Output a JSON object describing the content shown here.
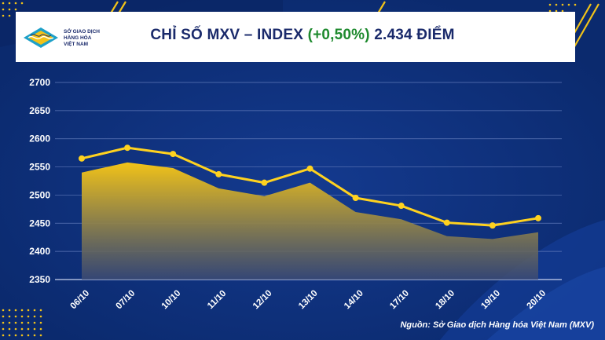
{
  "header": {
    "logo_lines": [
      "SỞ GIAO DỊCH",
      "HÀNG HÓA",
      "VIỆT NAM"
    ],
    "title_prefix": "CHỈ SỐ MXV – INDEX",
    "title_change": "(+0,50%)",
    "title_suffix": "2.434 ĐIỂM"
  },
  "source": "Nguồn: Sở Giao dịch Hàng hóa Việt Nam (MXV)",
  "colors": {
    "background": "#0d2e78",
    "line": "#ffd21f",
    "area_top": "#f2c318",
    "area_bottom": "#3b4a74",
    "title": "#1a2a6b",
    "change": "#1e8a2e"
  },
  "chart_data": {
    "type": "area",
    "categories": [
      "06/10",
      "07/10",
      "10/10",
      "11/10",
      "12/10",
      "13/10",
      "14/10",
      "17/10",
      "18/10",
      "19/10",
      "20/10"
    ],
    "series": [
      {
        "values": [
          2565,
          2584,
          2573,
          2537,
          2522,
          2547,
          2495,
          2481,
          2451,
          2446,
          2459
        ]
      },
      {
        "values": [
          2540,
          2558,
          2548,
          2512,
          2498,
          2522,
          2470,
          2457,
          2427,
          2422,
          2434
        ]
      }
    ],
    "yticks": [
      2350,
      2400,
      2450,
      2500,
      2550,
      2600,
      2650,
      2700
    ],
    "ylim": [
      2350,
      2700
    ],
    "grid": true
  }
}
